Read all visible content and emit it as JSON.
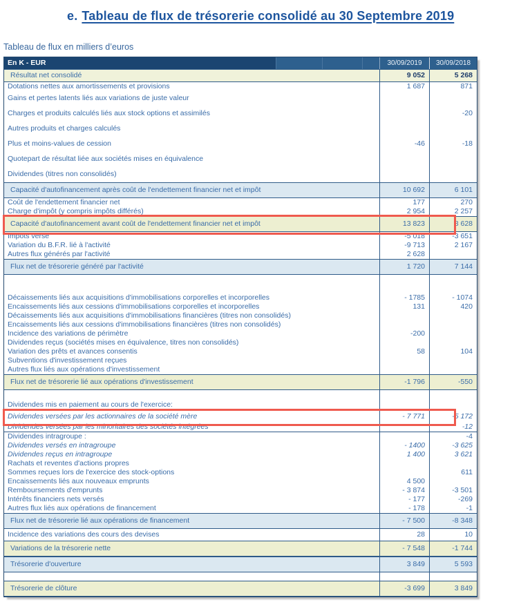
{
  "page": {
    "title_prefix": "e.",
    "title": "Tableau de flux de trésorerie consolidé au 30 Septembre 2019",
    "subtitle": "Tableau de flux en milliers d’euros"
  },
  "colors": {
    "title_blue": "#1d559e",
    "header_navy": "#1b4571",
    "header_blue": "#2e608e",
    "text_blue": "#3a6ca8",
    "subtotal_blue_bg": "#dbe8f1",
    "subtotal_yellow_bg": "#edefd1",
    "result_row_bg": "#f0f2da",
    "highlight_red": "#ef5a4e"
  },
  "table": {
    "header": {
      "label": "En K - EUR",
      "col2019": "30/09/2019",
      "col2018": "30/09/2018"
    },
    "rows": [
      {
        "label": "Résultat net consolidé",
        "v1": "9 052",
        "v2": "5 268",
        "style": "cream"
      },
      {
        "label": "Dotations nettes aux amortissements et provisions",
        "v1": "1 687",
        "v2": "871",
        "style": "normal"
      },
      {
        "label": "Gains et pertes latents liés aux variations de juste valeur",
        "v1": "",
        "v2": "",
        "style": "normal",
        "spacing": "sp"
      },
      {
        "label": "Charges et produits calculés liés aux stock options et assimilés",
        "v1": "",
        "v2": "-20",
        "style": "normal",
        "spacing": "sp"
      },
      {
        "label": "Autres produits et charges calculés",
        "v1": "",
        "v2": "",
        "style": "normal",
        "spacing": "sp"
      },
      {
        "label": "Plus et moins-values de cession",
        "v1": "-46",
        "v2": "-18",
        "style": "normal",
        "spacing": "sp"
      },
      {
        "label": "Quotepart de résultat liée aux sociétés mises en équivalence",
        "v1": "",
        "v2": "",
        "style": "normal",
        "spacing": "sp"
      },
      {
        "label": "Dividendes (titres non consolidés)",
        "v1": "",
        "v2": "",
        "style": "normal",
        "spacing": "sp"
      },
      {
        "label": "Capacité d'autofinancement après coût de l'endettement financier net et impôt",
        "v1": "10 692",
        "v2": "6 101",
        "style": "blue"
      },
      {
        "label": "Coût de l'endettement financier net",
        "v1": "177",
        "v2": "270",
        "style": "normal"
      },
      {
        "label": "Charge d'impôt (y compris impôts différés)",
        "v1": "2 954",
        "v2": "2 257",
        "style": "normal"
      },
      {
        "label": "Capacité d'autofinancement avant coût de l'endettement financier net et impôt",
        "v1": "13 823",
        "v2": "8 628",
        "style": "yellow",
        "redbox": true
      },
      {
        "label": "Impôts versé",
        "v1": "-5 018",
        "v2": "-3 651",
        "style": "normal"
      },
      {
        "label": "Variation du B.F.R. lié à l'activité",
        "v1": "-9 713",
        "v2": "2 167",
        "style": "normal"
      },
      {
        "label": "Autres flux générés par l'activité",
        "v1": "2 628",
        "v2": "",
        "style": "normal"
      },
      {
        "label": "Flux net de trésorerie généré par l'activité",
        "v1": "1 720",
        "v2": "7 144",
        "style": "blue"
      },
      {
        "style": "blank",
        "h": 27
      },
      {
        "label": "Décaissements liés aux acquisitions d'immobilisations corporelles et incorporelles",
        "v1": "- 1785",
        "v2": "- 1074",
        "style": "normal"
      },
      {
        "label": "Encaissements liés aux cessions d'immobilisations corporelles et incorporelles",
        "v1": "131",
        "v2": "420",
        "style": "normal"
      },
      {
        "label": "Décaissements liés aux acquisitions d'immobilisations financières (titres non consolidés)",
        "v1": "",
        "v2": "",
        "style": "normal"
      },
      {
        "label": "Encaissements liés aux cessions d'immobilisations financières (titres non consolidés)",
        "v1": "",
        "v2": "",
        "style": "normal"
      },
      {
        "label": "Incidence des variations de périmètre",
        "v1": "-200",
        "v2": "",
        "style": "normal"
      },
      {
        "label": "Dividendes reçus (sociétés mises en équivalence, titres non consolidés)",
        "v1": "",
        "v2": "",
        "style": "normal"
      },
      {
        "label": "Variation des prêts et avances consentis",
        "v1": "58",
        "v2": "104",
        "style": "normal"
      },
      {
        "label": "Subventions d'investissement reçues",
        "v1": "",
        "v2": "",
        "style": "normal"
      },
      {
        "label": "Autres flux liés aux opérations d'investissement",
        "v1": "",
        "v2": "",
        "style": "normal"
      },
      {
        "label": "Flux net de trésorerie lié aux opérations d'investissement",
        "v1": "-1 796",
        "v2": "-550",
        "style": "yellow"
      },
      {
        "style": "blank",
        "h": 13
      },
      {
        "label": "Dividendes mis en paiement au cours de l'exercice:",
        "v1": "",
        "v2": "",
        "style": "normal",
        "spacing": "pad"
      },
      {
        "label": "Dividendes versées par les actionnaires de la société mère",
        "v1": "- 7 771",
        "v2": "-5 172",
        "style": "normal",
        "italic": true,
        "spacing": "pad",
        "redbox": true
      },
      {
        "label": "Dividendes versées par les minoritaires des sociétés intégrées",
        "v1": "",
        "v2": "-12",
        "style": "normal",
        "italic": true,
        "hr_after": true
      },
      {
        "label": "Dividendes intragroupe :",
        "v1": "",
        "v2": "-4",
        "style": "normal"
      },
      {
        "label": "Dividendes versés en intragroupe",
        "v1": "- 1400",
        "v2": "-3 625",
        "style": "normal",
        "italic": true
      },
      {
        "label": "Dividendes reçus en intragroupe",
        "v1": "1 400",
        "v2": "3 621",
        "style": "normal",
        "italic": true
      },
      {
        "label": "Rachats et reventes d'actions propres",
        "v1": "",
        "v2": "",
        "style": "normal"
      },
      {
        "label": "Sommes reçues lors de l'exercice des stock-options",
        "v1": "",
        "v2": "611",
        "style": "normal"
      },
      {
        "label": "Encaissements liés aux nouveaux emprunts",
        "v1": "4 500",
        "v2": "",
        "style": "normal"
      },
      {
        "label": "Remboursements d'emprunts",
        "v1": "- 3 874",
        "v2": "-3 501",
        "style": "normal"
      },
      {
        "label": "Intérêts financiers nets versés",
        "v1": "- 177",
        "v2": "-269",
        "style": "normal"
      },
      {
        "label": "Autres flux liés aux opérations de financement",
        "v1": "- 178",
        "v2": "-1",
        "style": "normal"
      },
      {
        "label": "Flux net de trésorerie lié aux opérations de financement",
        "v1": "- 7 500",
        "v2": "-8 348",
        "style": "blue"
      },
      {
        "label": "Incidence des variations des cours des devises",
        "v1": "28",
        "v2": "10",
        "style": "normal",
        "spacing": "pad"
      },
      {
        "label": "Variations de la trésorerie nette",
        "v1": "- 7 548",
        "v2": "-1 744",
        "style": "yellow"
      },
      {
        "label": "Trésorerie d'ouverture",
        "v1": "3 849",
        "v2": "5 593",
        "style": "blue"
      },
      {
        "style": "blank",
        "h": 12
      },
      {
        "label": "Trésorerie de clôture",
        "v1": "-3 699",
        "v2": "3 849",
        "style": "yellow"
      }
    ]
  }
}
